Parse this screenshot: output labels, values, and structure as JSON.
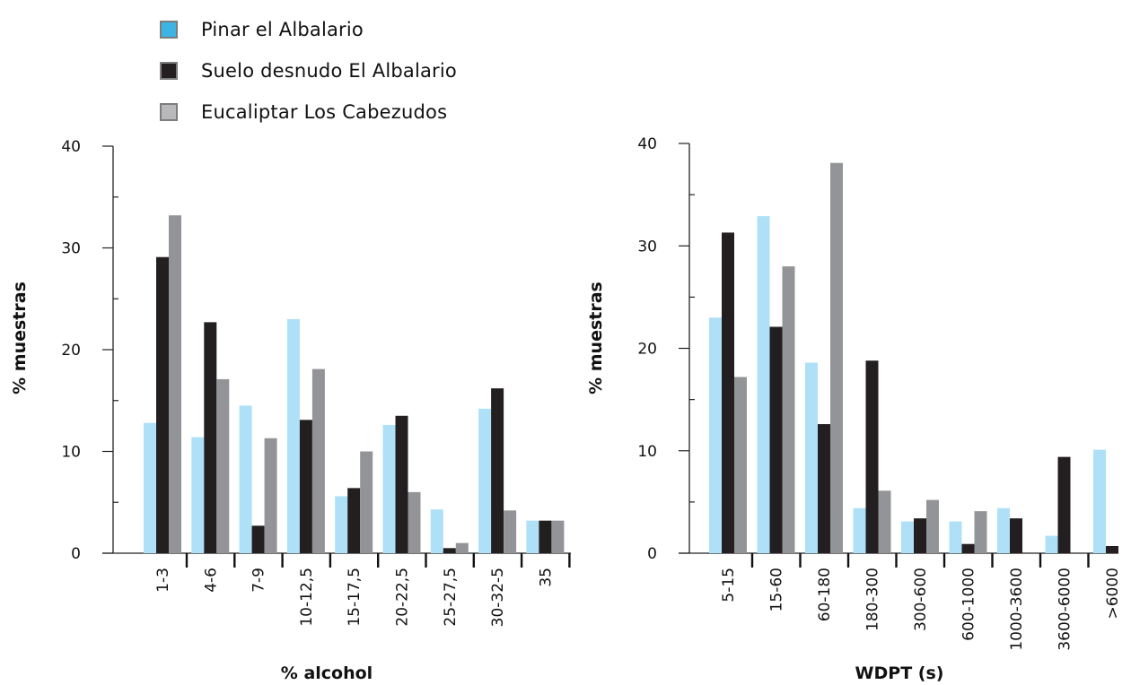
{
  "legend": [
    {
      "label": "Pinar el Albalario",
      "color": "#3db4e4"
    },
    {
      "label": "Suelo desnudo El Albalario",
      "color": "#231f20"
    },
    {
      "label": "Eucaliptar Los Cabezudos",
      "color": "#b9b9bc"
    }
  ],
  "chart_data": [
    {
      "type": "bar",
      "xlabel": "% alcohol",
      "ylabel": "% muestras",
      "ylim": [
        0,
        40
      ],
      "yticks": [
        0,
        10,
        20,
        30,
        40
      ],
      "categories": [
        "1-3",
        "4-6",
        "7-9",
        "10-12,5",
        "15-17,5",
        "20-22,5",
        "25-27,5",
        "30-32-5",
        "35"
      ],
      "series": [
        {
          "name": "Pinar el Albalario",
          "color": "#aee0f7",
          "values": [
            12.8,
            11.4,
            14.5,
            23,
            5.6,
            12.6,
            4.3,
            14.2,
            3.2
          ]
        },
        {
          "name": "Suelo desnudo El Albalario",
          "color": "#231f20",
          "values": [
            29.1,
            22.7,
            2.7,
            13.1,
            6.4,
            13.5,
            0.5,
            16.2,
            3.2
          ]
        },
        {
          "name": "Eucaliptar Los Cabezudos",
          "color": "#939497",
          "values": [
            33.2,
            17.1,
            11.3,
            18.1,
            10,
            6,
            1,
            4.2,
            3.2
          ]
        }
      ]
    },
    {
      "type": "bar",
      "xlabel": "WDPT (s)",
      "ylabel": "% muestras",
      "ylim": [
        0,
        40
      ],
      "yticks": [
        0,
        10,
        20,
        30,
        40
      ],
      "categories": [
        "5-15",
        "15-60",
        "60-180",
        "180-300",
        "300-600",
        "600-1000",
        "1000-3600",
        "3600-6000",
        ">6000"
      ],
      "series": [
        {
          "name": "Pinar el Albalario",
          "color": "#aee0f7",
          "values": [
            23,
            32.9,
            18.6,
            4.4,
            3.1,
            3.1,
            4.4,
            1.7,
            10.1
          ]
        },
        {
          "name": "Suelo desnudo El Albalario",
          "color": "#231f20",
          "values": [
            31.3,
            22.1,
            12.6,
            18.8,
            3.4,
            0.9,
            3.4,
            9.4,
            0.7
          ]
        },
        {
          "name": "Eucaliptar Los Cabezudos",
          "color": "#939497",
          "values": [
            17.2,
            28,
            38.1,
            6.1,
            5.2,
            4.1,
            0,
            0,
            0
          ]
        }
      ]
    }
  ]
}
